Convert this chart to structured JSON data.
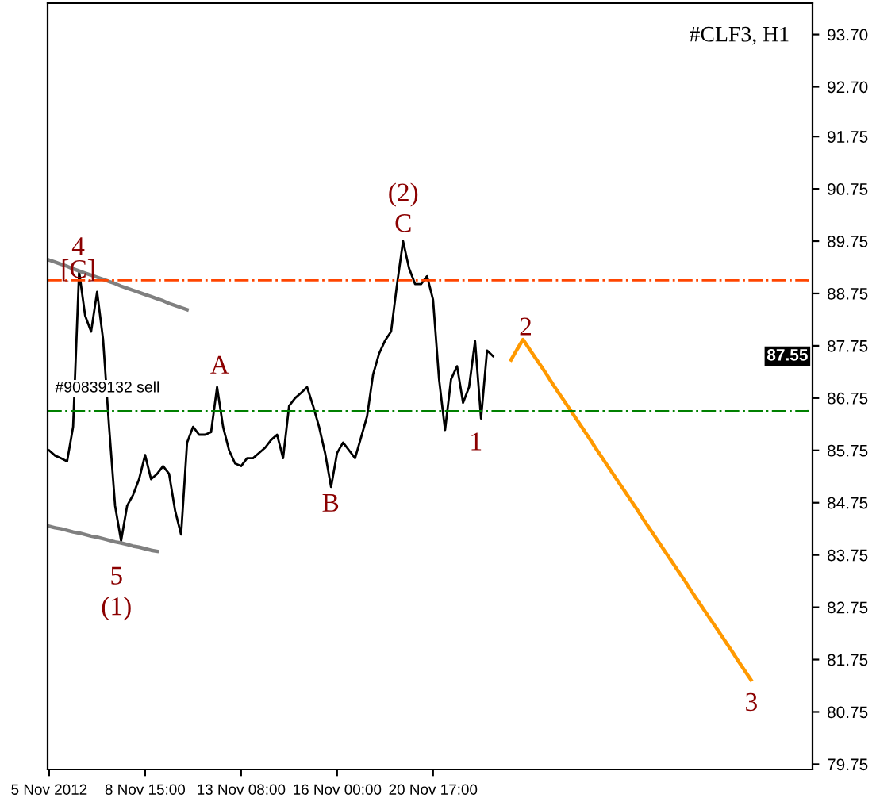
{
  "chart_data": {
    "type": "line",
    "title": "#CLF3, H1",
    "grid": false,
    "legend": false,
    "categories": [
      "5 Nov 2012",
      null,
      null,
      null,
      null,
      null,
      null,
      null,
      null,
      null,
      null,
      null,
      null,
      null,
      null,
      null,
      "8 Nov 15:00",
      null,
      null,
      null,
      null,
      null,
      null,
      null,
      null,
      null,
      null,
      null,
      null,
      null,
      null,
      null,
      "13 Nov 08:00",
      null,
      null,
      null,
      null,
      null,
      null,
      null,
      null,
      null,
      null,
      null,
      null,
      null,
      null,
      null,
      "16 Nov 00:00",
      null,
      null,
      null,
      null,
      null,
      null,
      null,
      null,
      null,
      null,
      null,
      null,
      null,
      null,
      null,
      "20 Nov 17:00",
      null,
      null,
      null,
      null,
      null,
      null,
      null,
      null,
      null,
      null,
      null,
      null,
      null,
      null,
      null,
      null,
      null,
      null,
      null,
      null,
      null,
      null,
      null,
      null,
      null,
      null,
      null,
      null,
      null,
      null,
      null,
      null,
      null,
      null,
      null,
      null,
      null,
      null,
      null,
      null,
      null,
      null,
      null,
      null,
      null,
      null,
      null,
      null,
      null,
      null,
      null,
      null,
      null,
      null,
      null,
      null,
      null,
      null,
      null,
      null,
      null,
      null,
      null
    ],
    "ylim": [
      79.65,
      94.3
    ],
    "yticks": [
      {
        "value": 93.7,
        "label": "93.70"
      },
      {
        "value": 92.7,
        "label": "92.70"
      },
      91.75,
      90.75,
      89.75,
      88.75,
      87.75,
      86.75,
      85.75,
      84.75,
      83.75,
      82.75,
      81.75,
      80.75,
      79.75
    ],
    "series": [
      {
        "color": "#000000",
        "values": [
          85.75,
          85.65,
          85.6,
          85.54,
          86.2,
          89.17,
          88.33,
          88.02,
          88.78,
          87.87,
          86.2,
          84.69,
          84.02,
          84.69,
          84.9,
          85.2,
          85.66,
          85.2,
          85.3,
          85.45,
          85.3,
          84.6,
          84.14,
          85.9,
          86.2,
          86.05,
          86.05,
          86.1,
          86.96,
          86.2,
          85.75,
          85.5,
          85.45,
          85.6,
          85.6,
          85.7,
          85.8,
          85.95,
          86.05,
          85.6,
          86.6,
          86.75,
          86.85,
          86.96,
          86.6,
          86.2,
          85.7,
          85.05,
          85.7,
          85.9,
          85.75,
          85.6,
          86.0,
          86.4,
          87.2,
          87.6,
          87.85,
          88.02,
          88.93,
          89.75,
          89.23,
          88.93,
          88.93,
          89.08,
          88.63,
          87.11,
          86.14,
          87.11,
          87.36,
          86.66,
          86.96,
          87.84,
          86.36,
          87.66,
          87.55,
          null,
          null,
          null,
          null,
          null,
          null,
          null,
          null,
          null,
          null,
          null,
          null,
          null,
          null,
          null,
          null,
          null,
          null,
          null,
          null,
          null,
          null,
          null,
          null,
          null,
          null,
          null,
          null,
          null,
          null,
          null,
          null,
          null,
          null,
          null,
          null,
          null,
          null,
          null,
          null,
          null,
          null,
          null,
          null,
          null,
          null,
          null,
          null,
          null,
          null,
          null,
          null,
          null
        ]
      },
      {
        "color": "#808080",
        "values": [
          89.39,
          89.35,
          89.31,
          89.27,
          89.22,
          89.18,
          89.14,
          89.1,
          89.06,
          89.02,
          88.98,
          88.94,
          88.89,
          88.85,
          88.81,
          88.77,
          88.73,
          88.69,
          88.65,
          88.61,
          88.56,
          88.52,
          88.48,
          88.44,
          null,
          null,
          null,
          null,
          null,
          null,
          null,
          null,
          null,
          null,
          null,
          null,
          null,
          null,
          null,
          null,
          null,
          null,
          null,
          null,
          null,
          null,
          null,
          null,
          null,
          null,
          null,
          null,
          null,
          null,
          null,
          null,
          null,
          null,
          null,
          null,
          null,
          null,
          null,
          null,
          null,
          null,
          null,
          null,
          null,
          null,
          null,
          null,
          null,
          null,
          null,
          null,
          null,
          null,
          null,
          null,
          null,
          null,
          null,
          null,
          null,
          null,
          null,
          null,
          null,
          null,
          null,
          null,
          null,
          null,
          null,
          null,
          null,
          null,
          null,
          null,
          null,
          null,
          null,
          null,
          null,
          null,
          null,
          null,
          null,
          null,
          null,
          null,
          null,
          null,
          null,
          null,
          null,
          null,
          null,
          null,
          null,
          null,
          null,
          null,
          null,
          null,
          null,
          null
        ]
      },
      {
        "color": "#808080",
        "values": [
          84.3,
          84.27,
          84.25,
          84.22,
          84.19,
          84.17,
          84.14,
          84.11,
          84.09,
          84.06,
          84.03,
          84.0,
          83.98,
          83.95,
          83.92,
          83.9,
          83.87,
          83.84,
          83.82,
          null,
          null,
          null,
          null,
          null,
          null,
          null,
          null,
          null,
          null,
          null,
          null,
          null,
          null,
          null,
          null,
          null,
          null,
          null,
          null,
          null,
          null,
          null,
          null,
          null,
          null,
          null,
          null,
          null,
          null,
          null,
          null,
          null,
          null,
          null,
          null,
          null,
          null,
          null,
          null,
          null,
          null,
          null,
          null,
          null,
          null,
          null,
          null,
          null,
          null,
          null,
          null,
          null,
          null,
          null,
          null,
          null,
          null,
          null,
          null,
          null,
          null,
          null,
          null,
          null,
          null,
          null,
          null,
          null,
          null,
          null,
          null,
          null,
          null,
          null,
          null,
          null,
          null,
          null,
          null,
          null,
          null,
          null,
          null,
          null,
          null,
          null,
          null,
          null,
          null,
          null,
          null,
          null,
          null,
          null,
          null,
          null,
          null,
          null,
          null,
          null,
          null,
          null,
          null,
          null,
          null,
          null,
          null,
          null
        ]
      },
      {
        "color": "#ff9900",
        "values": [
          null,
          null,
          null,
          null,
          null,
          null,
          null,
          null,
          null,
          null,
          null,
          null,
          null,
          null,
          null,
          null,
          null,
          null,
          null,
          null,
          null,
          null,
          null,
          null,
          null,
          null,
          null,
          null,
          null,
          null,
          null,
          null,
          null,
          null,
          null,
          null,
          null,
          null,
          null,
          null,
          null,
          null,
          null,
          null,
          null,
          null,
          null,
          null,
          null,
          null,
          null,
          null,
          null,
          null,
          null,
          null,
          null,
          null,
          null,
          null,
          null,
          null,
          null,
          null,
          null,
          null,
          null,
          null,
          null,
          null,
          null,
          null,
          null,
          null,
          null,
          null,
          null,
          87.48,
          87.68,
          87.87,
          87.7,
          87.53,
          87.36,
          87.19,
          87.01,
          86.84,
          86.67,
          86.5,
          86.33,
          86.16,
          85.99,
          85.81,
          85.64,
          85.47,
          85.3,
          85.13,
          84.96,
          84.79,
          84.62,
          84.44,
          84.27,
          84.1,
          83.93,
          83.76,
          83.59,
          83.42,
          83.25,
          83.07,
          82.9,
          82.73,
          82.56,
          82.39,
          82.22,
          82.05,
          81.88,
          81.7,
          81.53,
          81.36,
          null,
          null,
          null,
          null,
          null,
          null,
          null,
          null,
          null,
          null
        ]
      }
    ],
    "ref_lines": [
      {
        "axis": "y",
        "value": 89.0,
        "color": "#ff4500",
        "line_style": "dashed"
      },
      {
        "axis": "y",
        "value": 86.5,
        "label": "#90839132 sell",
        "color": "#008000",
        "line_style": "dashed"
      }
    ],
    "annotations": [
      "4",
      "[C]",
      "(2)",
      "C",
      "A",
      "B",
      "1",
      "2",
      "3",
      "5",
      "(1)",
      "87.55"
    ]
  }
}
